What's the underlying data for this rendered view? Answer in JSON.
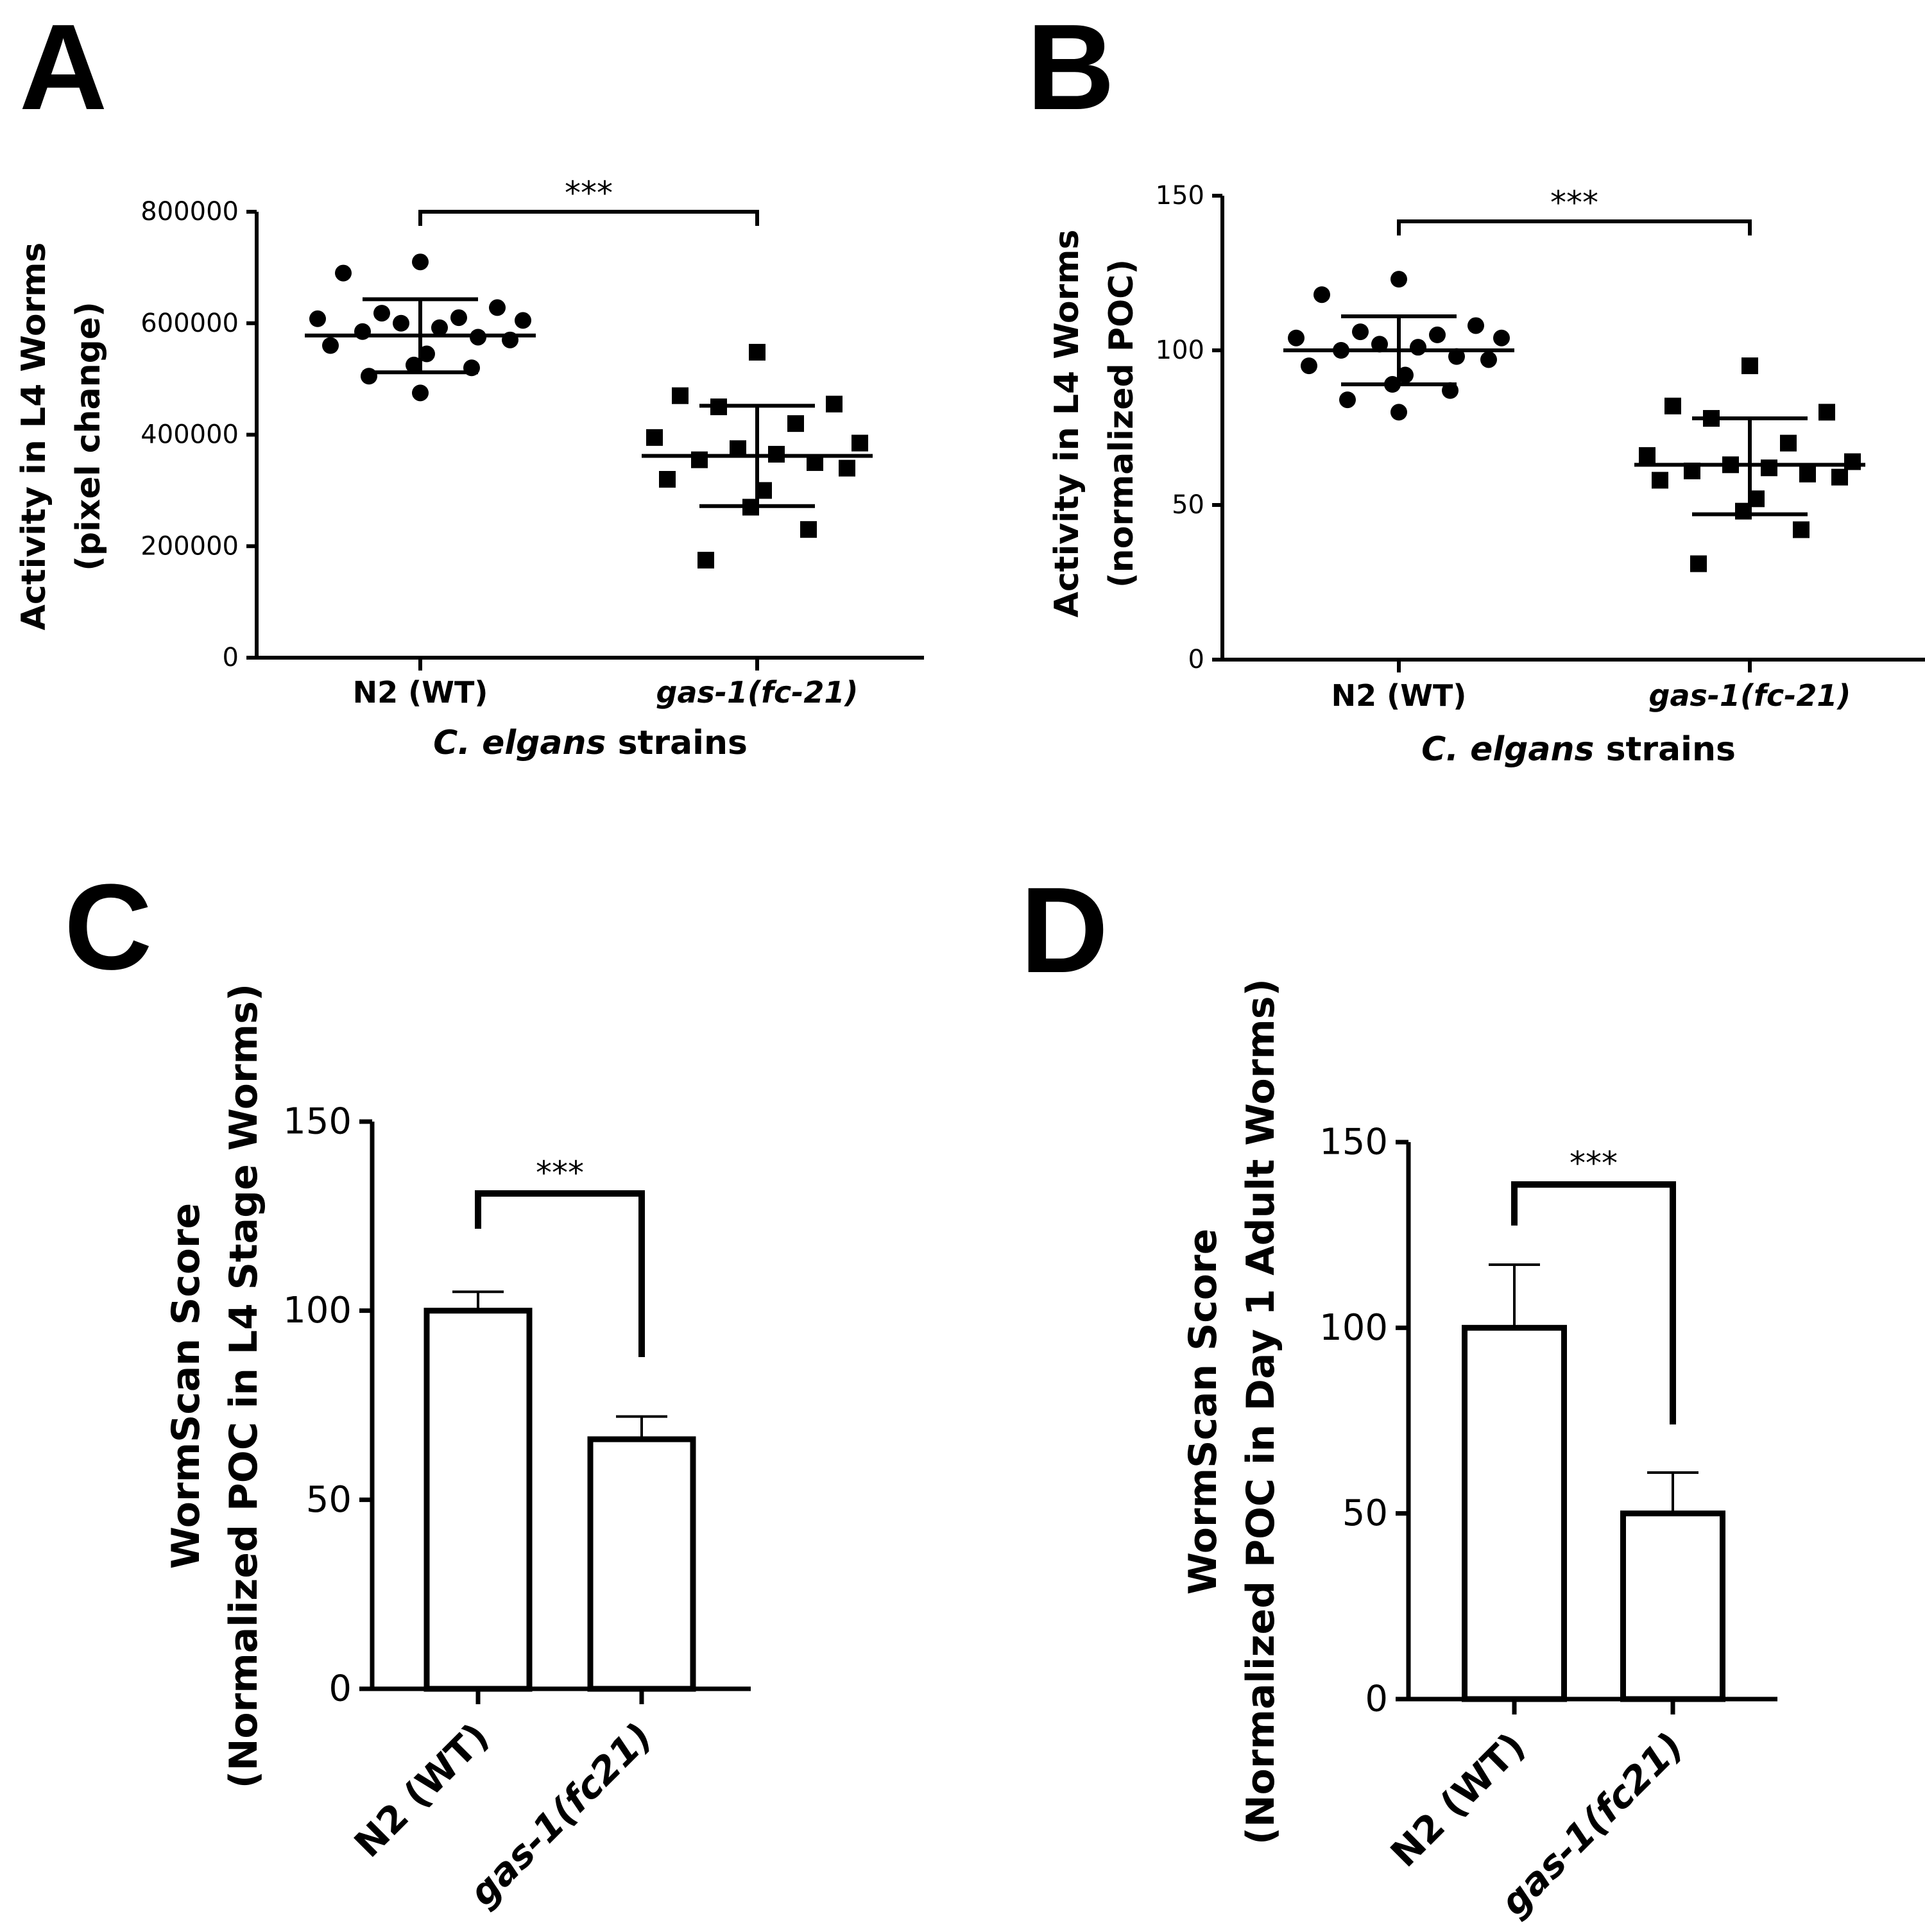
{
  "figure": {
    "panels": [
      "A",
      "B",
      "C",
      "D"
    ]
  },
  "chart_data": [
    {
      "id": "A",
      "type": "scatter",
      "panel_letter": "A",
      "ylabel_line1": "Activity in L4 Worms",
      "ylabel_line2": "(pixel change)",
      "xlabel_italic": "C. elgans",
      "xlabel_rest": " strains",
      "categories": [
        "N2 (WT)",
        "gas-1(fc-21)"
      ],
      "category_italic": [
        false,
        true
      ],
      "ylim": [
        0,
        800000
      ],
      "yticks": [
        0,
        200000,
        400000,
        600000,
        800000
      ],
      "ytick_labels": [
        "0",
        "200000",
        "400000",
        "600000",
        "800000"
      ],
      "significance": "***",
      "series": [
        {
          "name": "N2 (WT)",
          "marker": "circle",
          "mean": 578000,
          "sd_low": 512000,
          "sd_high": 643000,
          "values": [
            710000,
            690000,
            628000,
            618000,
            610000,
            608000,
            605000,
            600000,
            592000,
            585000,
            575000,
            570000,
            560000,
            545000,
            525000,
            520000,
            505000,
            475000
          ]
        },
        {
          "name": "gas-1(fc-21)",
          "marker": "square",
          "mean": 362000,
          "sd_low": 272000,
          "sd_high": 452000,
          "values": [
            548000,
            470000,
            455000,
            450000,
            420000,
            395000,
            385000,
            375000,
            365000,
            355000,
            350000,
            340000,
            320000,
            300000,
            270000,
            230000,
            175000
          ]
        }
      ]
    },
    {
      "id": "B",
      "type": "scatter",
      "panel_letter": "B",
      "ylabel_line1": "Activity in L4 Worms",
      "ylabel_line2": "(normalized POC)",
      "xlabel_italic": "C. elgans",
      "xlabel_rest": " strains",
      "categories": [
        "N2 (WT)",
        "gas-1(fc-21)"
      ],
      "category_italic": [
        false,
        true
      ],
      "ylim": [
        0,
        150
      ],
      "yticks": [
        0,
        50,
        100,
        150
      ],
      "ytick_labels": [
        "0",
        "50",
        "100",
        "150"
      ],
      "significance": "***",
      "series": [
        {
          "name": "N2 (WT)",
          "marker": "circle",
          "mean": 100,
          "sd_low": 89,
          "sd_high": 111,
          "values": [
            123,
            118,
            108,
            106,
            105,
            104,
            104,
            102,
            101,
            100,
            98,
            97,
            95,
            92,
            89,
            87,
            84,
            80
          ]
        },
        {
          "name": "gas-1(fc-21)",
          "marker": "square",
          "mean": 63,
          "sd_low": 47,
          "sd_high": 78,
          "values": [
            95,
            82,
            80,
            78,
            70,
            66,
            64,
            63,
            62,
            61,
            60,
            59,
            58,
            52,
            48,
            42,
            31
          ]
        }
      ]
    },
    {
      "id": "C",
      "type": "bar",
      "panel_letter": "C",
      "ylabel_line1": "WormScan Score",
      "ylabel_line2": "(Normalized POC in L4 Stage Worms)",
      "categories": [
        "N2 (WT)",
        "gas-1(fc21)"
      ],
      "category_italic": [
        false,
        true
      ],
      "ylim": [
        0,
        150
      ],
      "yticks": [
        0,
        50,
        100,
        150
      ],
      "ytick_labels": [
        "0",
        "50",
        "100",
        "150"
      ],
      "values": [
        100,
        66
      ],
      "errors": [
        5,
        6
      ],
      "significance": "***"
    },
    {
      "id": "D",
      "type": "bar",
      "panel_letter": "D",
      "ylabel_line1": "WormScan Score",
      "ylabel_line2": "(Normalized POC in Day 1 Adult Worms)",
      "categories": [
        "N2 (WT)",
        "gas-1(fc21)"
      ],
      "category_italic": [
        false,
        true
      ],
      "ylim": [
        0,
        150
      ],
      "yticks": [
        0,
        50,
        100,
        150
      ],
      "ytick_labels": [
        "0",
        "50",
        "100",
        "150"
      ],
      "values": [
        100,
        50
      ],
      "errors": [
        17,
        11
      ],
      "significance": "***"
    }
  ]
}
